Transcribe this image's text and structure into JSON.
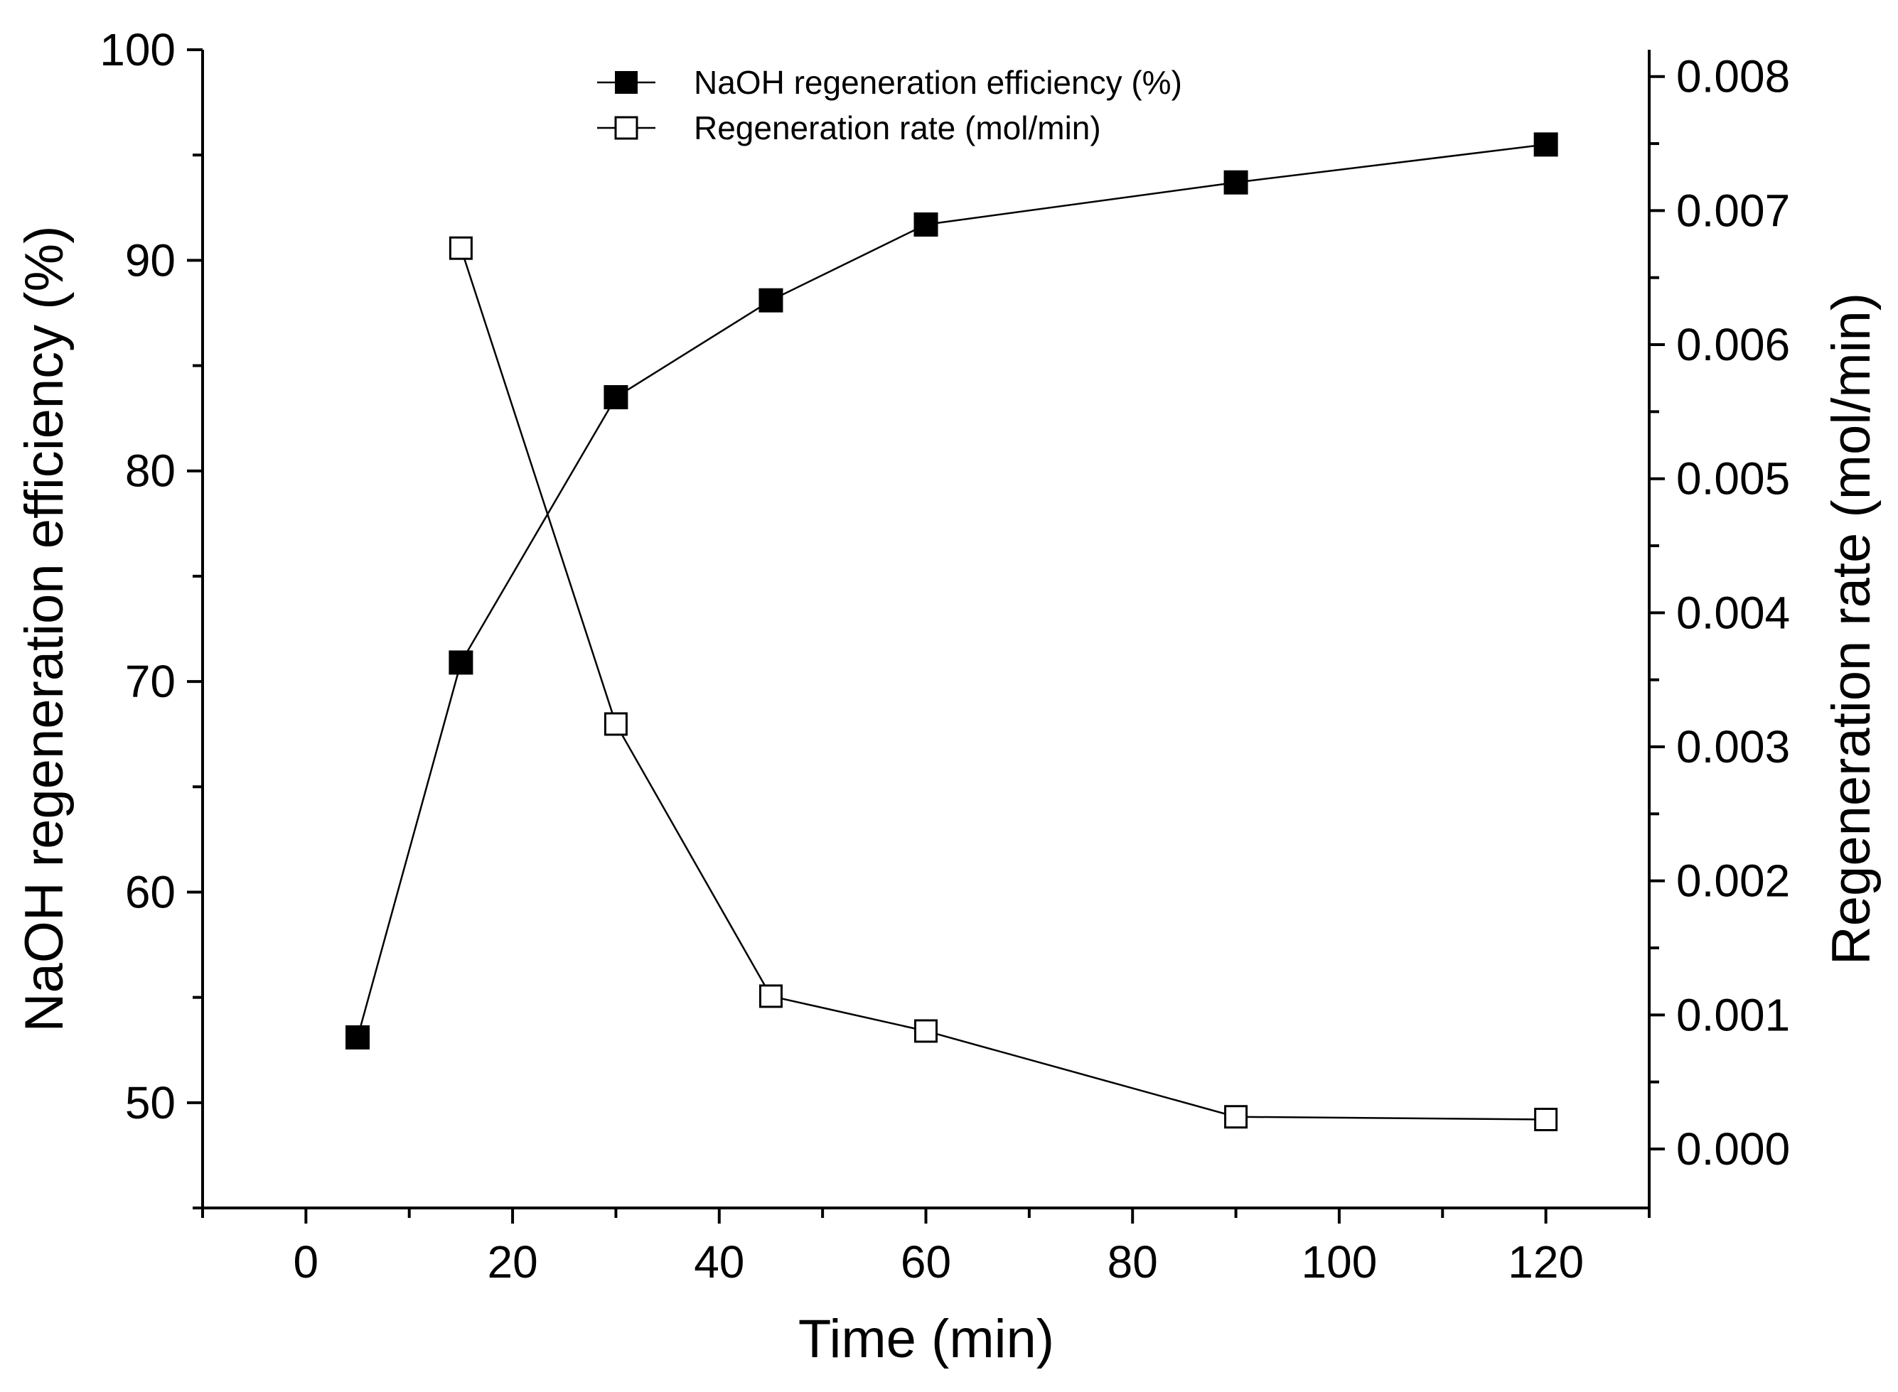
{
  "chart_data": {
    "type": "line",
    "x": [
      5,
      15,
      30,
      45,
      60,
      90,
      120
    ],
    "xlabel": "Time (min)",
    "xlim": [
      -10,
      130
    ],
    "xticks": [
      "0",
      "20",
      "40",
      "60",
      "80",
      "100",
      "120"
    ],
    "ylabel": "NaOH regeneration efficiency (%)",
    "ylim": [
      45,
      100
    ],
    "yticks": [
      "50",
      "60",
      "70",
      "80",
      "90",
      "100"
    ],
    "y2label": "Regeneration rate (mol/min)",
    "y2lim": [
      -0.00044,
      0.0082
    ],
    "y2ticks": [
      "0.000",
      "0.001",
      "0.002",
      "0.003",
      "0.004",
      "0.005",
      "0.006",
      "0.007",
      "0.008"
    ],
    "legend_position": "top-center",
    "series": [
      {
        "name": "NaOH regeneration efficiency (%)",
        "axis": "left",
        "marker": "filled-square",
        "x": [
          5,
          15,
          30,
          45,
          60,
          90,
          120
        ],
        "values": [
          53.1,
          70.9,
          83.5,
          88.1,
          91.7,
          93.7,
          95.5
        ]
      },
      {
        "name": "Regeneration rate (mol/min)",
        "axis": "right",
        "marker": "open-square",
        "x": [
          15,
          30,
          45,
          60,
          90,
          120
        ],
        "values": [
          0.00672,
          0.00317,
          0.00114,
          0.00088,
          0.00024,
          0.00022
        ]
      }
    ]
  }
}
